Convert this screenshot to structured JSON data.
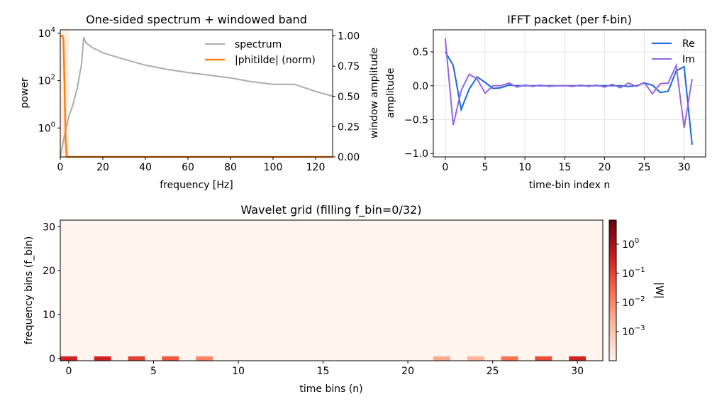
{
  "chart_data": [
    {
      "type": "line",
      "title": "One-sided spectrum + windowed band",
      "xlabel": "frequency [Hz]",
      "ylabel": "power",
      "y2label": "window amplitude",
      "xlim": [
        0,
        128
      ],
      "ylim": [
        0.06,
        14000
      ],
      "yscale": "log",
      "y2lim": [
        0,
        1.05
      ],
      "xticks": [
        "0",
        "20",
        "40",
        "60",
        "80",
        "100",
        "120"
      ],
      "yticks": [
        "10^0",
        "10^2",
        "10^4"
      ],
      "y2ticks": [
        "0.00",
        "0.25",
        "0.50",
        "0.75",
        "1.00"
      ],
      "legend_position": "top-right",
      "band": [
        0,
        4
      ],
      "series": [
        {
          "name": "spectrum",
          "color": "#abacb0",
          "axis": "left",
          "x": [
            0,
            2,
            4,
            6,
            8,
            10,
            11,
            12,
            15,
            20,
            30,
            40,
            50,
            60,
            70,
            80,
            90,
            100,
            110,
            120,
            128
          ],
          "values": [
            0.06,
            0.5,
            3,
            10,
            50,
            500,
            7000,
            4000,
            2500,
            1500,
            800,
            450,
            300,
            220,
            170,
            130,
            90,
            70,
            70,
            35,
            22
          ]
        },
        {
          "name": "|phitilde| (norm)",
          "color": "#ff7f0e",
          "axis": "right",
          "x": [
            0,
            1,
            1.5,
            2,
            2.5,
            3,
            128
          ],
          "values": [
            1,
            1,
            0.97,
            0.6,
            0.15,
            0,
            0
          ]
        }
      ]
    },
    {
      "type": "line",
      "title": "IFFT packet (per f-bin)",
      "xlabel": "time-bin index n",
      "ylabel": "amplitude",
      "xlim": [
        -1.5,
        32.7
      ],
      "ylim": [
        -1.05,
        0.825
      ],
      "xticks": [
        "0",
        "5",
        "10",
        "15",
        "20",
        "25",
        "30"
      ],
      "yticks": [
        "0.5",
        "0.0",
        "-0.5",
        "-1.0"
      ],
      "grid": true,
      "legend_position": "top-right",
      "series": [
        {
          "name": "Re",
          "color": "#1a66d9",
          "values": [
            0.5,
            0.3,
            -0.35,
            -0.05,
            0.13,
            0.05,
            -0.04,
            -0.03,
            0.01,
            0.0,
            0.0,
            0.0,
            0.0,
            0.0,
            0.0,
            0.0,
            0.0,
            0.0,
            0.0,
            0.0,
            0.0,
            0.0,
            0.0,
            -0.01,
            0.0,
            0.04,
            0.01,
            -0.1,
            -0.08,
            0.22,
            0.28,
            -0.87
          ]
        },
        {
          "name": "Im",
          "color": "#9366e0",
          "values": [
            0.7,
            -0.58,
            -0.07,
            0.17,
            0.1,
            -0.11,
            0.0,
            0.0,
            0.04,
            -0.02,
            0.01,
            -0.01,
            0.01,
            -0.01,
            0.0,
            0.0,
            -0.01,
            0.01,
            -0.01,
            0.01,
            -0.02,
            0.02,
            -0.03,
            0.04,
            -0.01,
            0.05,
            -0.12,
            0.03,
            0.04,
            0.3,
            -0.62,
            0.1
          ]
        }
      ]
    },
    {
      "type": "heatmap",
      "title": "Wavelet grid (filling f_bin=0/32)",
      "xlabel": "time bins (n)",
      "ylabel": "frequency bins (f_bin)",
      "xlim": [
        -0.5,
        31.5
      ],
      "ylim": [
        -0.5,
        31.5
      ],
      "xticks": [
        "0",
        "5",
        "10",
        "15",
        "20",
        "25",
        "30"
      ],
      "yticks": [
        "0",
        "10",
        "20",
        "30"
      ],
      "colorbar_label": "|W|",
      "colorbar_scale": "log",
      "colorbar_range": [
        0.0001,
        6.7
      ],
      "colorbar_ticks": [
        "10^0",
        "10^-1",
        "10^-2",
        "10^-3"
      ],
      "colormap": "Reds",
      "row0_values": [
        0.3,
        0.0001,
        0.3,
        0.0001,
        0.1,
        0.0001,
        0.05,
        0.0001,
        0.01,
        0.0001,
        0.0001,
        0.0001,
        0.0001,
        0.0001,
        0.0001,
        0.0001,
        0.0001,
        0.0001,
        0.0001,
        0.0001,
        0.0001,
        0.0001,
        0.003,
        0.0001,
        0.002,
        0.0001,
        0.02,
        0.0001,
        0.07,
        0.0001,
        0.3,
        0.0001
      ]
    }
  ]
}
